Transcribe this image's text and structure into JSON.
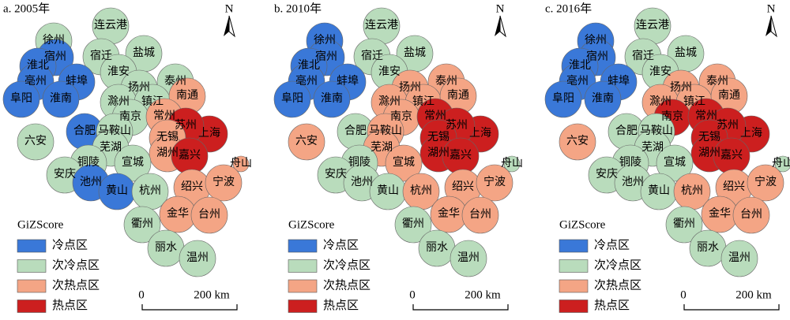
{
  "legend": {
    "title": "GiZScore",
    "items": [
      "冷点区",
      "次冷点区",
      "次热点区",
      "热点区"
    ],
    "colors": [
      "#3a78d8",
      "#b9dcbc",
      "#f4a585",
      "#cc1f1f"
    ]
  },
  "north": "N",
  "scale": {
    "start": "0",
    "end": "200 km"
  },
  "cities": [
    "徐州",
    "连云港",
    "宿州",
    "宿迁",
    "盐城",
    "淮北",
    "淮安",
    "亳州",
    "蚌埠",
    "扬州",
    "泰州",
    "阜阳",
    "淮南",
    "滁州",
    "镇江",
    "南通",
    "南京",
    "常州",
    "上海",
    "合肥",
    "马鞍山",
    "苏州",
    "无锡",
    "六安",
    "芜湖",
    "湖州",
    "嘉兴",
    "舟山",
    "铜陵",
    "宣城",
    "安庆",
    "池州",
    "黄山",
    "杭州",
    "绍兴",
    "宁波",
    "金华",
    "台州",
    "衢州",
    "丽水",
    "温州"
  ],
  "panels": [
    {
      "title": "a. 2005年",
      "classes": [
        1,
        1,
        0,
        1,
        1,
        0,
        1,
        0,
        0,
        1,
        1,
        0,
        0,
        1,
        1,
        2,
        1,
        2,
        3,
        0,
        1,
        3,
        2,
        1,
        1,
        2,
        3,
        2,
        1,
        1,
        1,
        0,
        0,
        1,
        2,
        2,
        2,
        2,
        1,
        1,
        1
      ]
    },
    {
      "title": "b. 2010年",
      "classes": [
        0,
        1,
        0,
        1,
        1,
        0,
        1,
        0,
        0,
        2,
        2,
        0,
        0,
        2,
        2,
        2,
        2,
        3,
        3,
        1,
        2,
        3,
        3,
        2,
        2,
        3,
        3,
        1,
        1,
        2,
        1,
        1,
        1,
        2,
        2,
        2,
        2,
        2,
        1,
        1,
        1
      ]
    },
    {
      "title": "c. 2016年",
      "classes": [
        0,
        1,
        0,
        1,
        1,
        0,
        1,
        0,
        0,
        2,
        2,
        0,
        0,
        2,
        2,
        2,
        3,
        3,
        3,
        1,
        1,
        3,
        3,
        2,
        1,
        3,
        3,
        1,
        1,
        1,
        1,
        1,
        1,
        2,
        2,
        2,
        2,
        2,
        1,
        1,
        1
      ]
    }
  ]
}
